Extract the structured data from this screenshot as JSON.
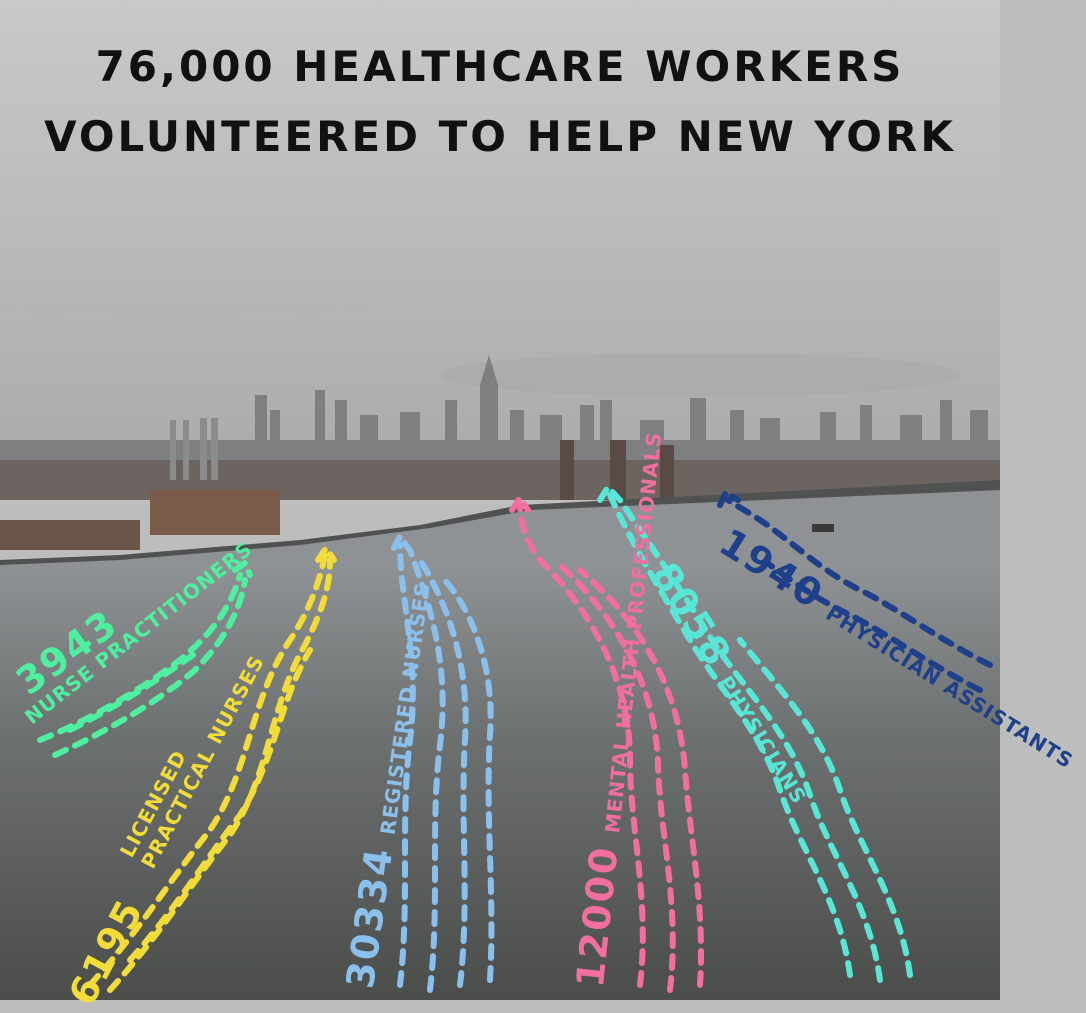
{
  "title": {
    "line1": "76,000 HEALTHCARE WORKERS",
    "line2": "VOLUNTEERED TO HELP NEW YORK"
  },
  "groups": {
    "nurse_practitioners": {
      "count": "3943",
      "label": "NURSE PRACTITIONERS",
      "color": "#4ef0a0"
    },
    "licensed_practical_nurses": {
      "count": "6195",
      "label_line1": "LICENSED",
      "label_line2": "PRACTICAL NURSES",
      "color": "#f2dc3a"
    },
    "registered_nurses": {
      "count": "30334",
      "label": "REGISTERED NURSES",
      "color": "#8cc0ec"
    },
    "mental_health_professionals": {
      "count": "12000",
      "label": "MENTAL HEALTH PROFESSIONALS",
      "color": "#f06fa0"
    },
    "physicians": {
      "count": "8058",
      "label": "PHYSICIANS",
      "color": "#5ae6d6"
    },
    "physician_assistants": {
      "count": "1940",
      "label": "PHYSICIAN ASSISTANTS",
      "color": "#1e3f8a"
    }
  }
}
